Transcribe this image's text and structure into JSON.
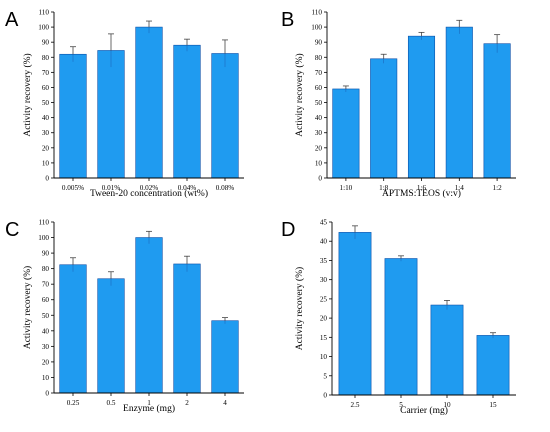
{
  "figure": {
    "bar_color": "#1f9bf0",
    "bar_edge_color": "#0b4fa8",
    "axis_color": "#000000"
  },
  "chart_data": [
    {
      "panel": "A",
      "type": "bar",
      "categories": [
        "0.005%",
        "0.01%",
        "0.02%",
        "0.04%",
        "0.08%"
      ],
      "values": [
        82,
        84.5,
        100,
        88,
        82.5
      ],
      "errors": [
        5,
        11,
        4,
        4,
        9
      ],
      "xlabel": "Tween-20 concentration (wt%)",
      "ylabel": "Activity recovery (%)",
      "ylim": [
        0,
        110
      ],
      "yticks": [
        0,
        10,
        20,
        30,
        40,
        50,
        60,
        70,
        80,
        90,
        100,
        110
      ],
      "grid": false
    },
    {
      "panel": "B",
      "type": "bar",
      "categories": [
        "1:10",
        "1:8",
        "1:6",
        "1:4",
        "1:2"
      ],
      "values": [
        59,
        79,
        94,
        100,
        89
      ],
      "errors": [
        2,
        3,
        2.5,
        4.5,
        6
      ],
      "xlabel": "APTMS:TEOS (v:v)",
      "ylabel": "Activity recovery (%)",
      "ylim": [
        0,
        110
      ],
      "yticks": [
        0,
        10,
        20,
        30,
        40,
        50,
        60,
        70,
        80,
        90,
        100,
        110
      ],
      "grid": false
    },
    {
      "panel": "C",
      "type": "bar",
      "categories": [
        "0.25",
        "0.5",
        "1",
        "2",
        "4"
      ],
      "values": [
        82.5,
        73.5,
        100,
        83,
        46.5
      ],
      "errors": [
        4.5,
        4.5,
        4,
        5,
        2
      ],
      "xlabel": "Enzyme (mg)",
      "ylabel": "Activity recovery (%)",
      "ylim": [
        0,
        110
      ],
      "yticks": [
        0,
        10,
        20,
        30,
        40,
        50,
        60,
        70,
        80,
        90,
        100,
        110
      ],
      "grid": false
    },
    {
      "panel": "D",
      "type": "bar",
      "categories": [
        "2.5",
        "5",
        "10",
        "15"
      ],
      "values": [
        42.3,
        35.5,
        23.4,
        15.5
      ],
      "errors": [
        1.7,
        0.7,
        1.2,
        0.7
      ],
      "xlabel": "Carrier (mg)",
      "ylabel": "Activity recovery (%)",
      "ylim": [
        0,
        45
      ],
      "yticks": [
        0,
        5,
        10,
        15,
        20,
        25,
        30,
        35,
        40,
        45
      ],
      "grid": false
    }
  ]
}
